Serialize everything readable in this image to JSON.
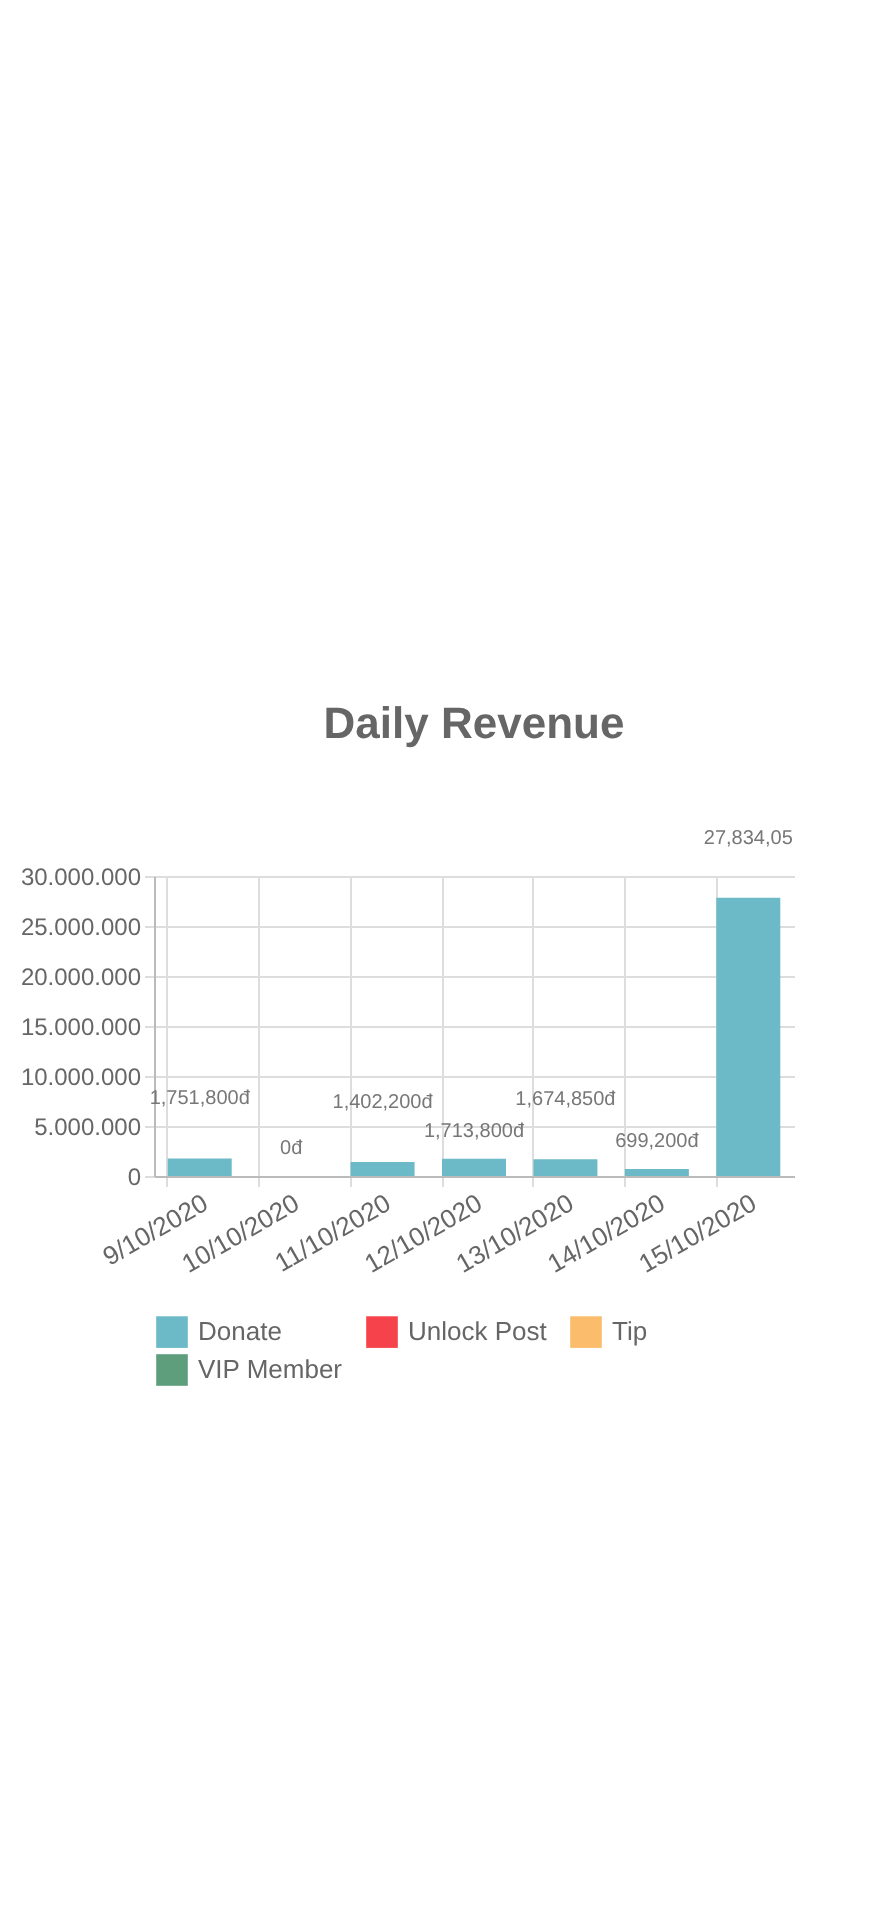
{
  "chart_data": {
    "type": "bar",
    "title": "Daily Revenue",
    "stacked": true,
    "grid": true,
    "legend": "bottom",
    "data_labels": false,
    "categories": [
      "9/10/2020",
      "10/10/2020",
      "11/10/2020",
      "12/10/2020",
      "13/10/2020",
      "14/10/2020",
      "15/10/2020"
    ],
    "ylim": [
      0,
      30000000
    ],
    "yticks": [
      {
        "value": 0,
        "label": "0"
      },
      {
        "value": 5000000,
        "label": "5.000.000"
      },
      {
        "value": 10000000,
        "label": "10.000.000"
      },
      {
        "value": 15000000,
        "label": "15.000.000"
      },
      {
        "value": 20000000,
        "label": "20.000.000"
      },
      {
        "value": 25000000,
        "label": "25.000.000"
      },
      {
        "value": 30000000,
        "label": "30.000.000"
      }
    ],
    "series": [
      {
        "name": "Donate",
        "color": "#6cb9c7",
        "values": [
          1751800,
          0,
          1402200,
          1713800,
          1674850,
          699200,
          27834050
        ],
        "value_labels": [
          "1,751,800đ",
          "0đ",
          "1,402,200đ",
          "1,713,800đ",
          "1,674,850đ",
          "699,200đ",
          "27,834,05"
        ]
      },
      {
        "name": "Unlock Post",
        "color": "#f5424b",
        "values": [
          0,
          0,
          0,
          0,
          0,
          0,
          0
        ]
      },
      {
        "name": "Tip",
        "color": "#fbbd6b",
        "values": [
          0,
          0,
          0,
          0,
          0,
          0,
          0
        ]
      },
      {
        "name": "VIP Member",
        "color": "#5f9e7c",
        "values": [
          0,
          0,
          0,
          0,
          0,
          0,
          0
        ]
      }
    ]
  }
}
